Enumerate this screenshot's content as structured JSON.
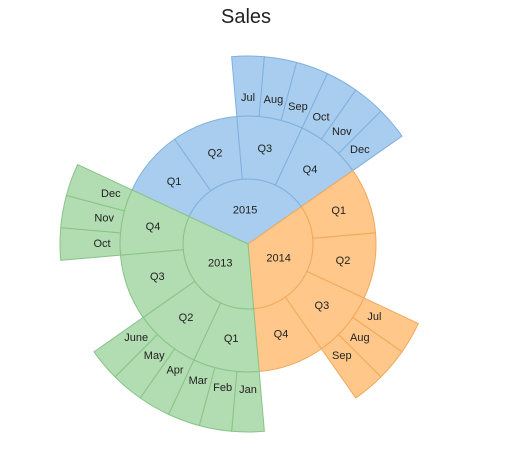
{
  "chart_data": {
    "type": "sunburst",
    "title": "Sales",
    "colors": {
      "2015": {
        "fill": "#a9cdee",
        "stroke": "#7fb0de"
      },
      "2014": {
        "fill": "#ffc78a",
        "stroke": "#f2a85a"
      },
      "2013": {
        "fill": "#b2dcb1",
        "stroke": "#88c487"
      }
    },
    "years": [
      {
        "label": "2015",
        "quarters": [
          {
            "label": "Q1",
            "months": []
          },
          {
            "label": "Q2",
            "months": []
          },
          {
            "label": "Q3",
            "months": [
              "Jul",
              "Aug",
              "Sep"
            ]
          },
          {
            "label": "Q4",
            "months": [
              "Oct",
              "Nov",
              "Dec"
            ]
          }
        ]
      },
      {
        "label": "2014",
        "quarters": [
          {
            "label": "Q1",
            "months": []
          },
          {
            "label": "Q2",
            "months": []
          },
          {
            "label": "Q3",
            "months": [
              "Jul",
              "Aug",
              "Sep"
            ]
          },
          {
            "label": "Q4",
            "months": []
          }
        ]
      },
      {
        "label": "2013",
        "quarters": [
          {
            "label": "Q1",
            "months": [
              "Jan",
              "Feb",
              "Mar"
            ]
          },
          {
            "label": "Q2",
            "months": [
              "Apr",
              "May",
              "June"
            ]
          },
          {
            "label": "Q3",
            "months": []
          },
          {
            "label": "Q4",
            "months": [
              "Oct",
              "Nov",
              "Dec"
            ]
          }
        ]
      }
    ]
  }
}
